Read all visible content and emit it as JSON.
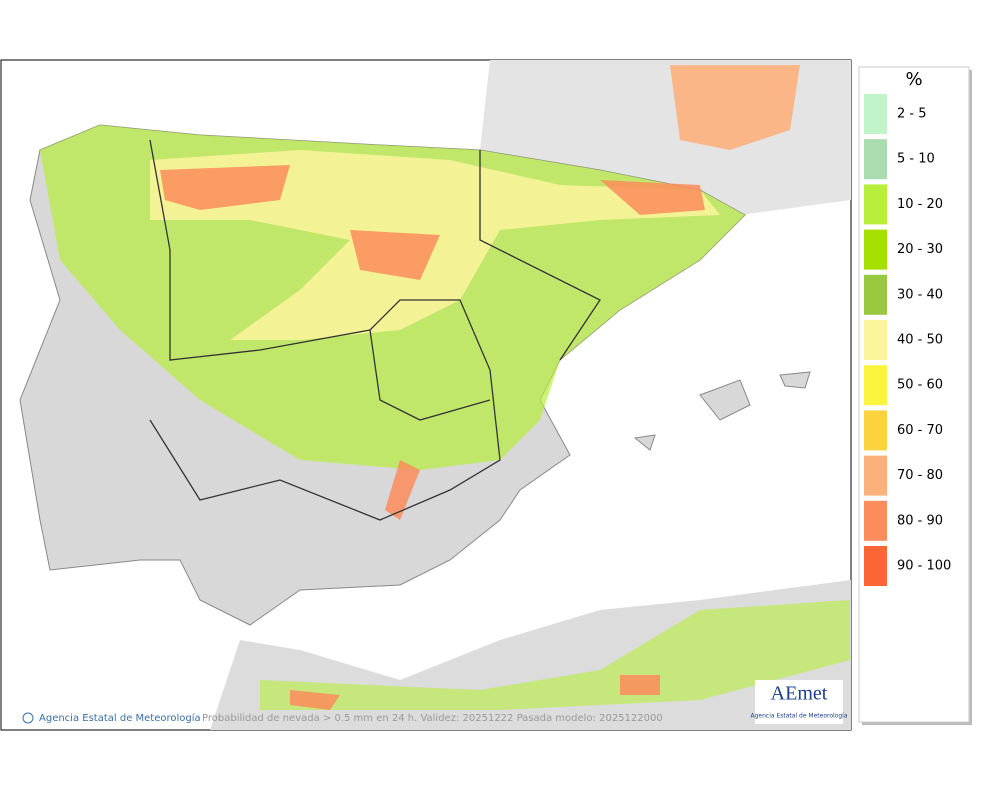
{
  "map": {
    "credit": "Agencia Estatal de Meteorología",
    "caption": "Probabilidad de nevada > 0.5 mm en 24 h. Validez: 20251222 Pasada modelo: 2025122000",
    "logo": "AEmet",
    "logo_sub": "Agencia Estatal de Meteorología"
  },
  "legend": {
    "title": "%",
    "items": [
      {
        "label": "2 - 5",
        "color": "#bff5c8"
      },
      {
        "label": "5 - 10",
        "color": "#a9dcae"
      },
      {
        "label": "10 - 20",
        "color": "#b8ee3c"
      },
      {
        "label": "20 - 30",
        "color": "#a6e000"
      },
      {
        "label": "30 - 40",
        "color": "#98c83e"
      },
      {
        "label": "40 - 50",
        "color": "#fbf59c"
      },
      {
        "label": "50 - 60",
        "color": "#fbf43e"
      },
      {
        "label": "60 - 70",
        "color": "#fcd23e"
      },
      {
        "label": "70 - 80",
        "color": "#fcb07c"
      },
      {
        "label": "80 - 90",
        "color": "#fc8c5c"
      },
      {
        "label": "90 - 100",
        "color": "#fc6634"
      }
    ]
  }
}
